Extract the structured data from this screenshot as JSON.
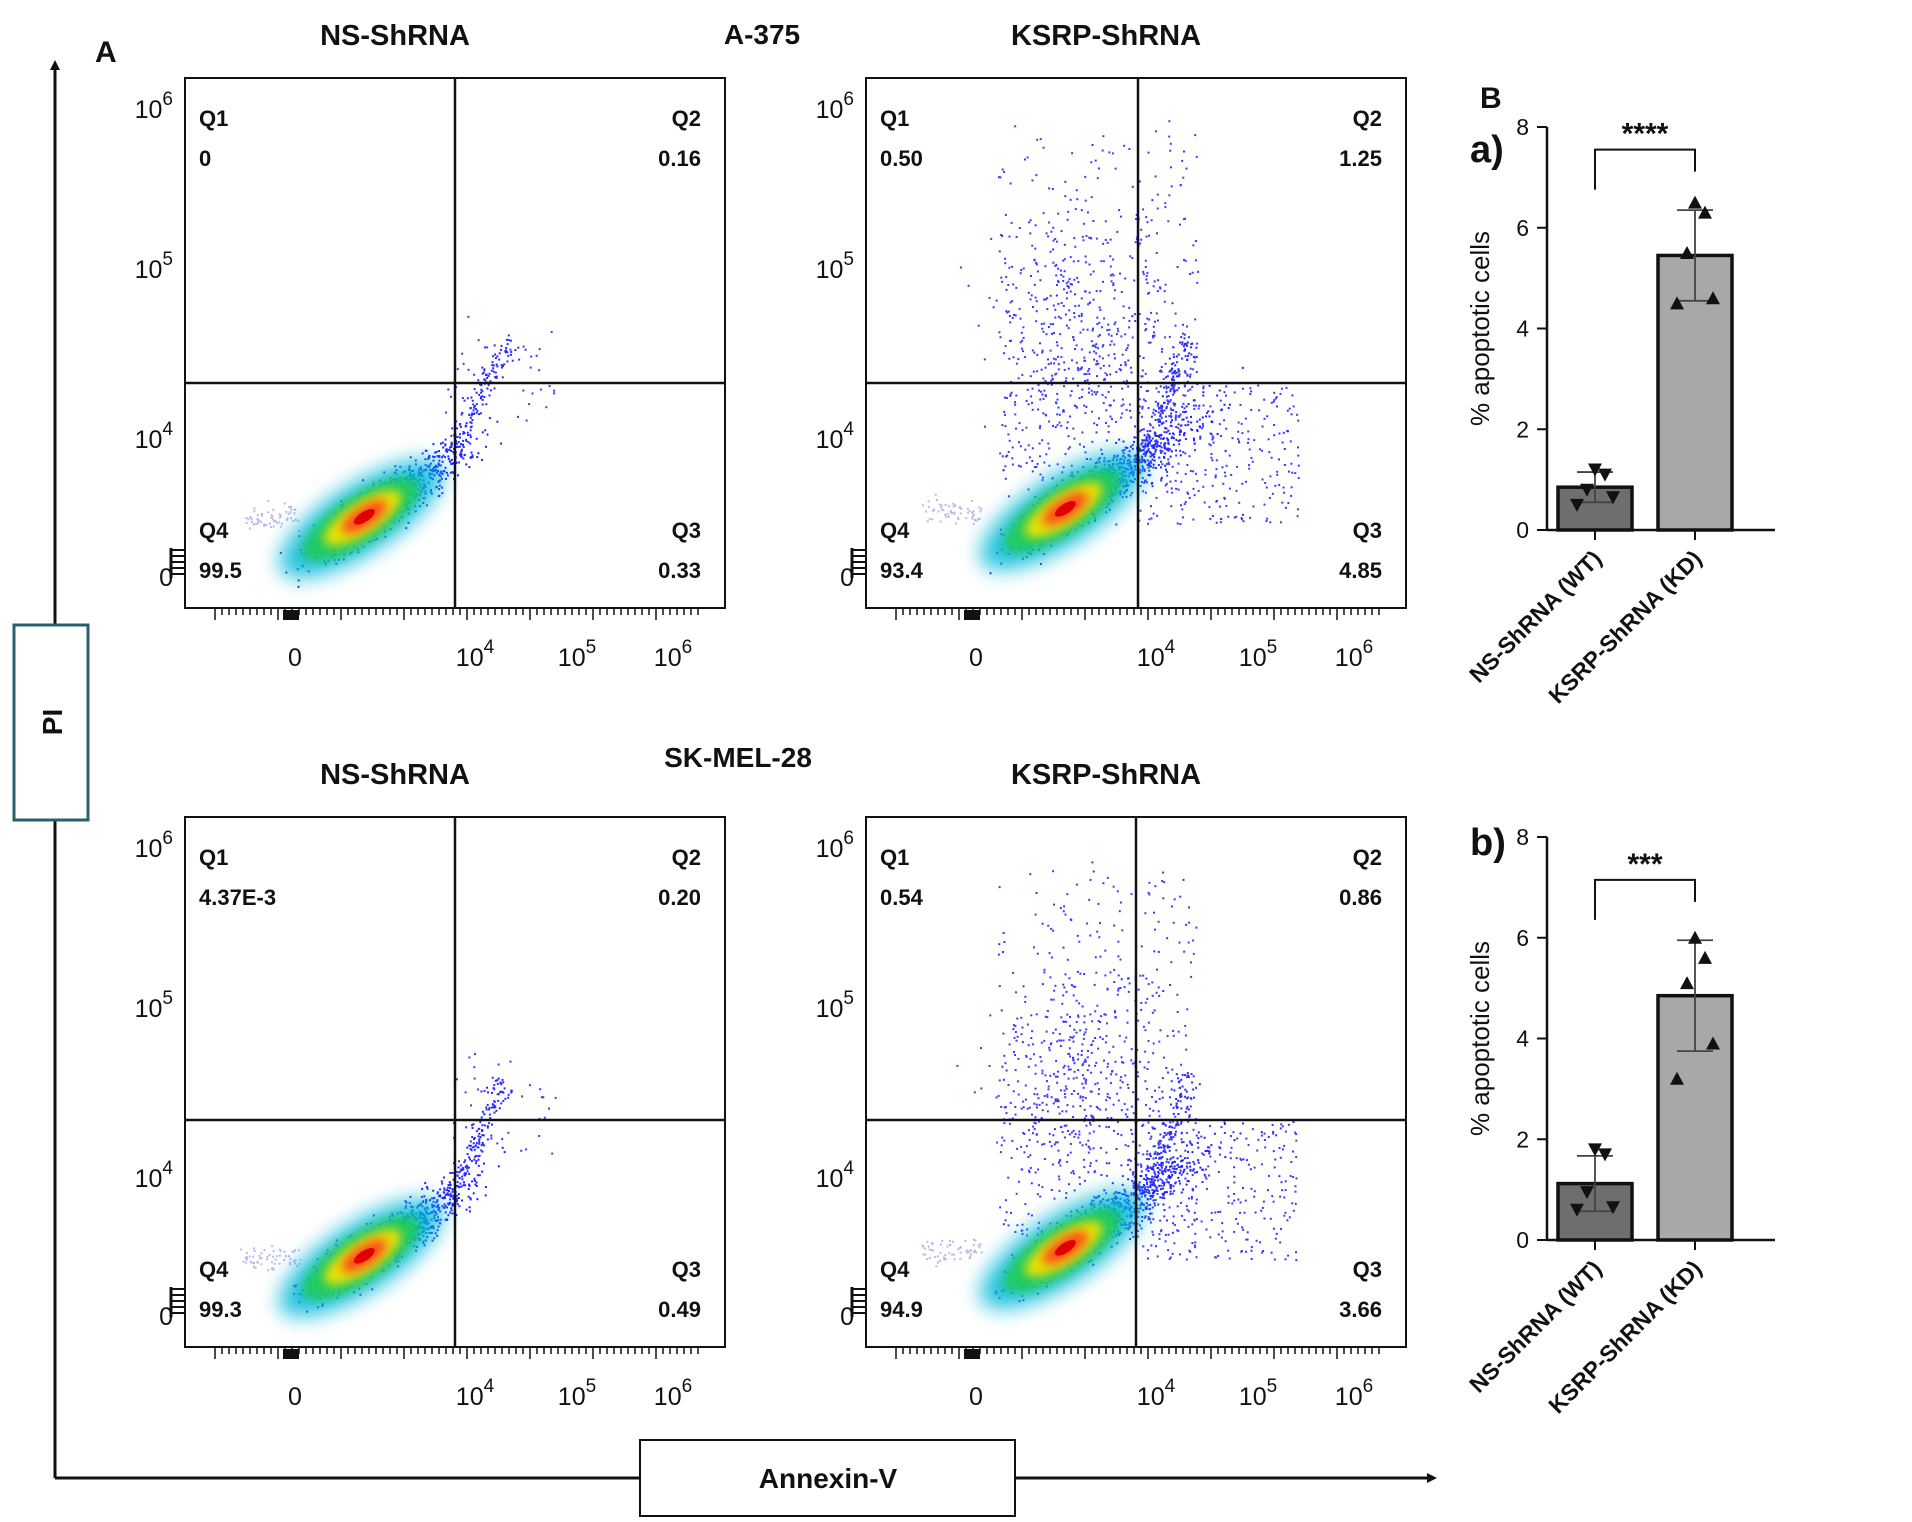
{
  "panel_a": {
    "label": "A",
    "top_cell_line": "A-375",
    "bottom_cell_line": "SK-MEL-28",
    "y_axis_label": "PI",
    "x_axis_label": "Annexin-V",
    "y_ticks": [
      "10^6",
      "10^5",
      "10^4",
      "0"
    ],
    "x_ticks": [
      "0",
      "10^4",
      "10^5",
      "10^6"
    ],
    "quadrant_names": [
      "Q1",
      "Q2",
      "Q3",
      "Q4"
    ]
  },
  "panel_b": {
    "label": "B",
    "ylabel": "% apoptotic cells"
  },
  "chart_data": [
    {
      "type": "scatter",
      "id": "a375-ns",
      "cell_line": "A-375",
      "title": "NS-ShRNA",
      "xlabel": "Annexin-V",
      "ylabel": "PI",
      "quadrants": {
        "Q1": "0",
        "Q2": "0.16",
        "Q3": "0.33",
        "Q4": "99.5"
      }
    },
    {
      "type": "scatter",
      "id": "a375-ksrp",
      "cell_line": "A-375",
      "title": "KSRP-ShRNA",
      "xlabel": "Annexin-V",
      "ylabel": "PI",
      "quadrants": {
        "Q1": "0.50",
        "Q2": "1.25",
        "Q3": "4.85",
        "Q4": "93.4"
      }
    },
    {
      "type": "scatter",
      "id": "skmel-ns",
      "cell_line": "SK-MEL-28",
      "title": "NS-ShRNA",
      "xlabel": "Annexin-V",
      "ylabel": "PI",
      "quadrants": {
        "Q1": "4.37E-3",
        "Q2": "0.20",
        "Q3": "0.49",
        "Q4": "99.3"
      }
    },
    {
      "type": "scatter",
      "id": "skmel-ksrp",
      "cell_line": "SK-MEL-28",
      "title": "KSRP-ShRNA",
      "xlabel": "Annexin-V",
      "ylabel": "PI",
      "quadrants": {
        "Q1": "0.54",
        "Q2": "0.86",
        "Q3": "3.66",
        "Q4": "94.9"
      }
    },
    {
      "type": "bar",
      "id": "bar-a",
      "panel": "a)",
      "ylabel": "% apoptotic cells",
      "ylim": [
        0,
        8
      ],
      "yticks": [
        0,
        2,
        4,
        6,
        8
      ],
      "categories": [
        "NS-ShRNA (WT)",
        "KSRP-ShRNA (KD)"
      ],
      "values": [
        0.85,
        5.45
      ],
      "errors": [
        0.3,
        0.9
      ],
      "significance": "****",
      "points": [
        [
          0.5,
          0.65,
          0.8,
          1.1,
          1.2
        ],
        [
          4.5,
          4.6,
          5.5,
          6.3,
          6.5
        ]
      ]
    },
    {
      "type": "bar",
      "id": "bar-b",
      "panel": "b)",
      "ylabel": "% apoptotic cells",
      "ylim": [
        0,
        8
      ],
      "yticks": [
        0,
        2,
        4,
        6,
        8
      ],
      "categories": [
        "NS-ShRNA (WT)",
        "KSRP-ShRNA (KD)"
      ],
      "values": [
        1.12,
        4.85
      ],
      "errors": [
        0.55,
        1.1
      ],
      "significance": "***",
      "points": [
        [
          0.6,
          0.65,
          0.95,
          1.7,
          1.8
        ],
        [
          3.2,
          3.9,
          5.1,
          5.6,
          6.0
        ]
      ]
    }
  ]
}
